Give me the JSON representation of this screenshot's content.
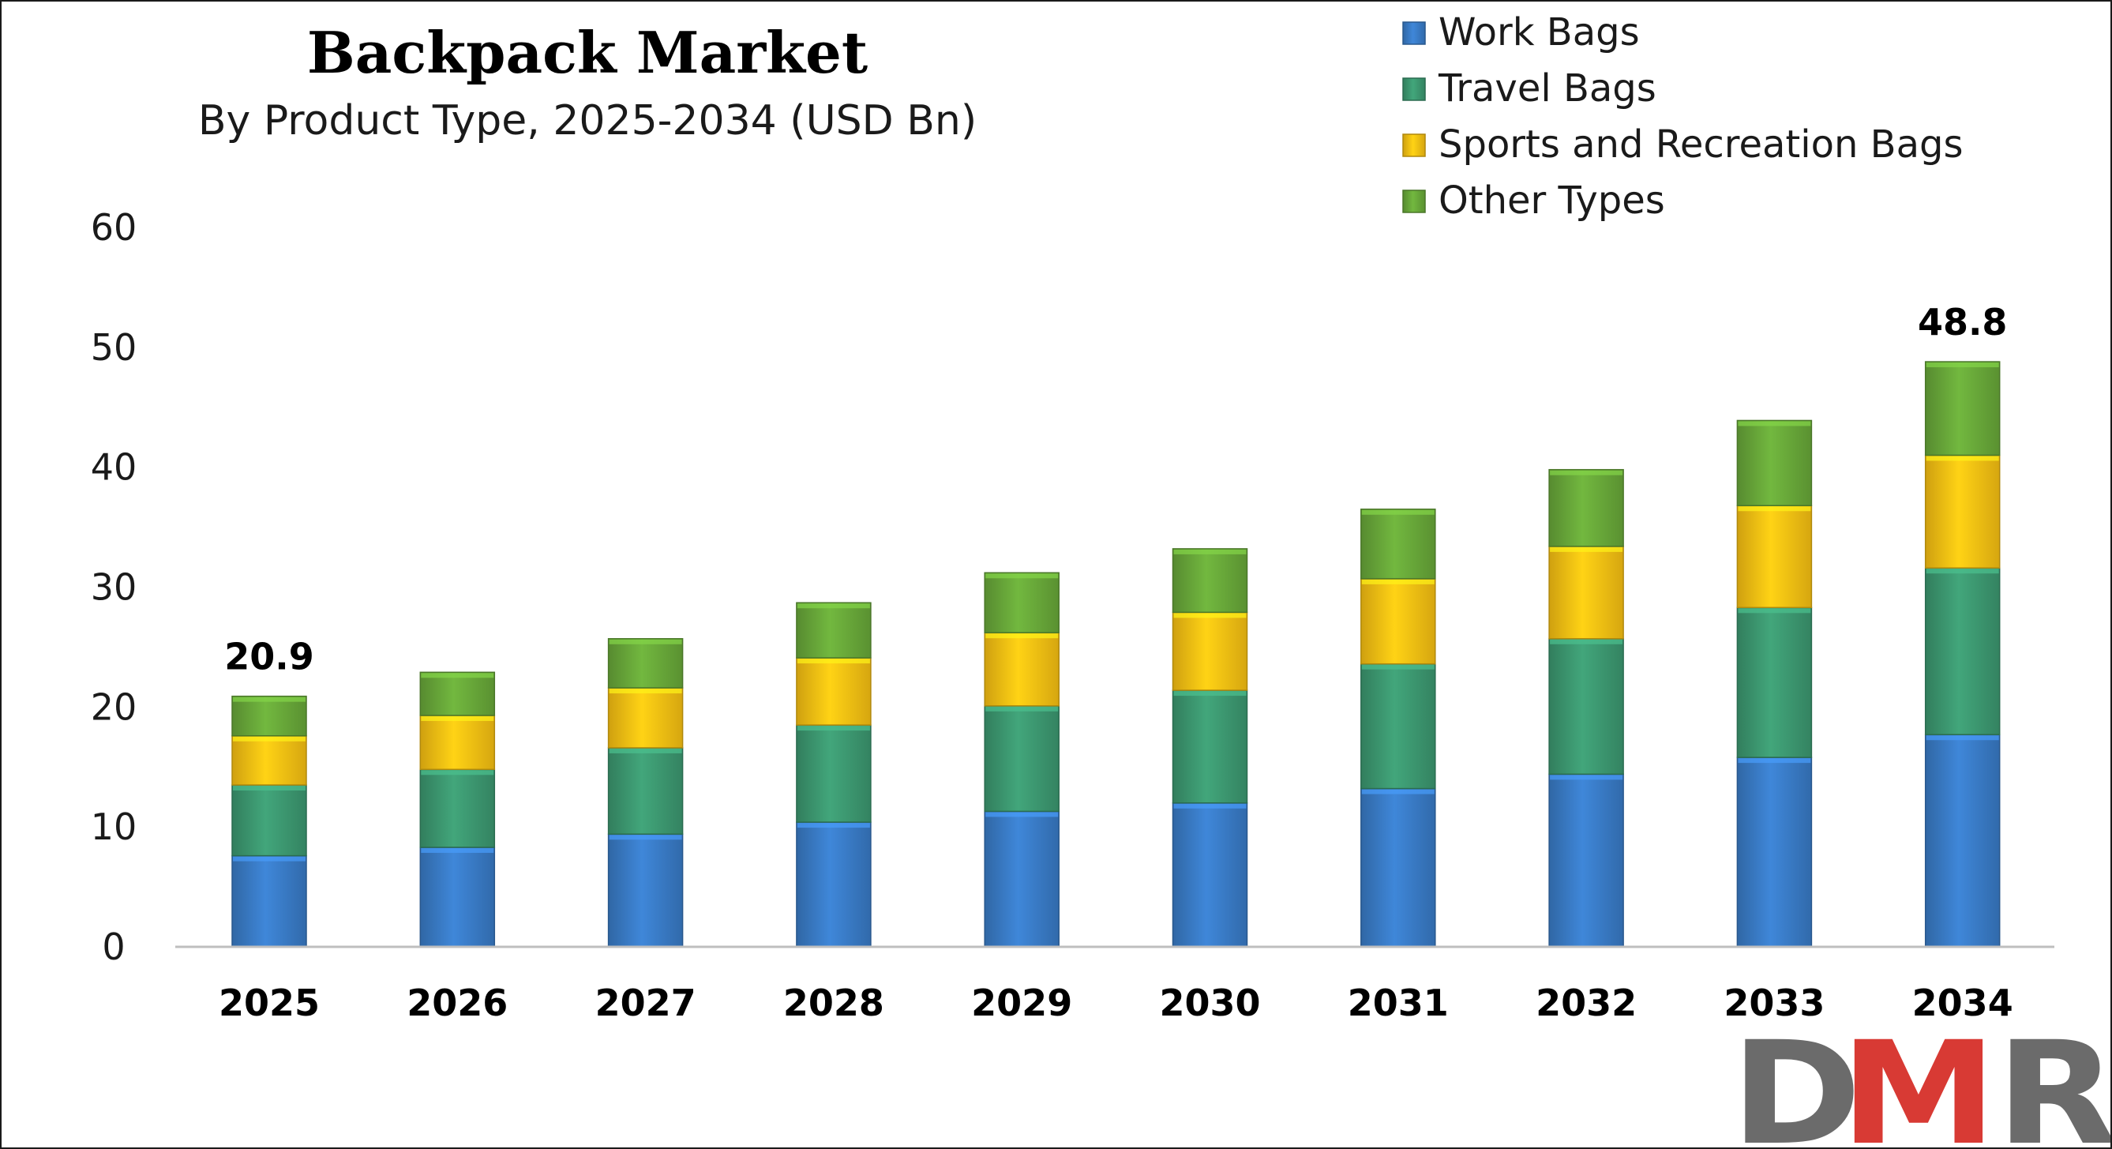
{
  "chart_data": {
    "type": "bar",
    "stacked": true,
    "title": "Backpack Market",
    "subtitle": "By Product Type, 2025-2034 (USD Bn)",
    "xlabel": "",
    "ylabel": "",
    "ylim": [
      0,
      60
    ],
    "yticks": [
      0,
      10,
      20,
      30,
      40,
      50,
      60
    ],
    "grid": false,
    "legend_position": "top-right",
    "categories": [
      "2025",
      "2026",
      "2027",
      "2028",
      "2029",
      "2030",
      "2031",
      "2032",
      "2033",
      "2034"
    ],
    "series": [
      {
        "name": "Work Bags",
        "color": "#3a7dc9",
        "values": [
          7.6,
          8.3,
          9.4,
          10.4,
          11.3,
          12.0,
          13.2,
          14.4,
          15.8,
          17.7
        ]
      },
      {
        "name": "Travel Bags",
        "color": "#3d9a72",
        "values": [
          5.9,
          6.5,
          7.2,
          8.1,
          8.8,
          9.4,
          10.4,
          11.3,
          12.5,
          13.9
        ]
      },
      {
        "name": "Sports and Recreation Bags",
        "color": "#fcc313",
        "values": [
          4.1,
          4.5,
          5.0,
          5.6,
          6.1,
          6.5,
          7.1,
          7.7,
          8.5,
          9.4
        ]
      },
      {
        "name": "Other Types",
        "color": "#6aaa3a",
        "values": [
          3.3,
          3.6,
          4.1,
          4.6,
          5.0,
          5.3,
          5.8,
          6.4,
          7.1,
          7.8
        ]
      }
    ],
    "annotations": [
      {
        "category": "2025",
        "text": "20.9"
      },
      {
        "category": "2034",
        "text": "48.8"
      }
    ]
  },
  "logo": {
    "text": "DMR",
    "colors": [
      "#6b6b6b",
      "#d83a34",
      "#6b6b6b"
    ]
  }
}
